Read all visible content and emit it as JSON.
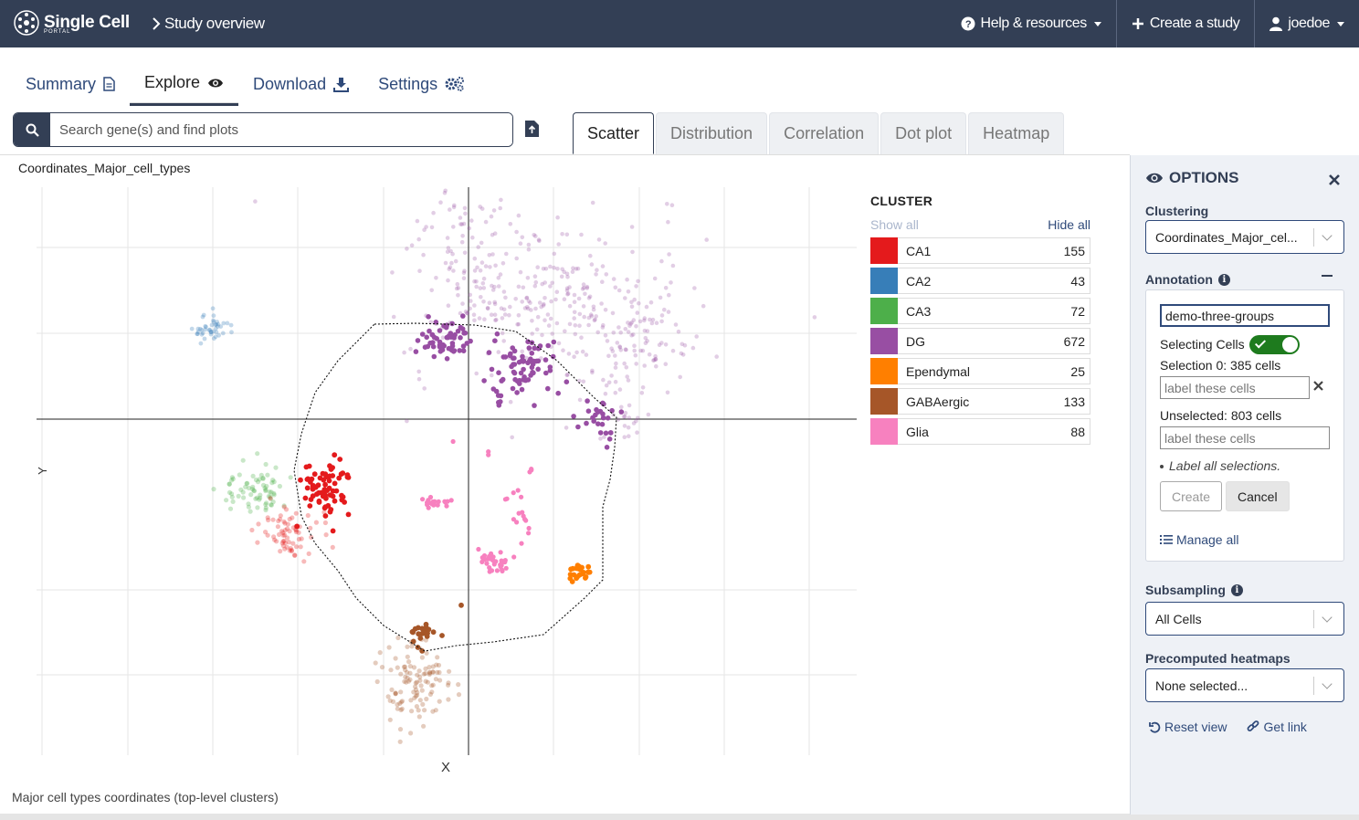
{
  "header": {
    "brand": "Single Cell",
    "brand_sub": "PORTAL",
    "study_link": "Study overview",
    "help": "Help & resources",
    "create": "Create a study",
    "user": "joedoe"
  },
  "tabs": [
    {
      "label": "Summary",
      "icon": "document-icon"
    },
    {
      "label": "Explore",
      "icon": "eye-icon"
    },
    {
      "label": "Download",
      "icon": "download-icon"
    },
    {
      "label": "Settings",
      "icon": "gears-icon"
    }
  ],
  "search": {
    "placeholder": "Search gene(s) and find plots"
  },
  "plot_tabs": [
    "Scatter",
    "Distribution",
    "Correlation",
    "Dot plot",
    "Heatmap"
  ],
  "plot": {
    "title": "Coordinates_Major_cell_types",
    "xlabel": "X",
    "ylabel": "Y",
    "caption": "Major cell types coordinates (top-level clusters)"
  },
  "legend": {
    "title": "CLUSTER",
    "show_all": "Show all",
    "hide_all": "Hide all",
    "items": [
      {
        "label": "CA1",
        "count": "155",
        "color": "#e41a1c"
      },
      {
        "label": "CA2",
        "count": "43",
        "color": "#377eb8"
      },
      {
        "label": "CA3",
        "count": "72",
        "color": "#4daf4a"
      },
      {
        "label": "DG",
        "count": "672",
        "color": "#984ea3"
      },
      {
        "label": "Ependymal",
        "count": "25",
        "color": "#ff7f00"
      },
      {
        "label": "GABAergic",
        "count": "133",
        "color": "#a65628"
      },
      {
        "label": "Glia",
        "count": "88",
        "color": "#f781bf"
      }
    ]
  },
  "chart_data": {
    "type": "scatter",
    "title": "Coordinates_Major_cell_types",
    "xlabel": "X",
    "ylabel": "Y",
    "grid": true,
    "legend_position": "right",
    "series": [
      {
        "name": "CA1",
        "n": 155,
        "color": "#e41a1c"
      },
      {
        "name": "CA2",
        "n": 43,
        "color": "#377eb8"
      },
      {
        "name": "CA3",
        "n": 72,
        "color": "#4daf4a"
      },
      {
        "name": "DG",
        "n": 672,
        "color": "#984ea3"
      },
      {
        "name": "Ependymal",
        "n": 25,
        "color": "#ff7f00"
      },
      {
        "name": "GABAergic",
        "n": 133,
        "color": "#a65628"
      },
      {
        "name": "Glia",
        "n": 88,
        "color": "#f781bf"
      }
    ]
  },
  "options": {
    "title": "OPTIONS",
    "clustering_label": "Clustering",
    "clustering_value": "Coordinates_Major_cel...",
    "annotation_label": "Annotation",
    "annotation_name": "demo-three-groups",
    "selecting_cells": "Selecting Cells",
    "selection0": "Selection 0: 385 cells",
    "label_placeholder": "label these cells",
    "unselected": "Unselected: 803 cells",
    "note": "Label all selections.",
    "create": "Create",
    "cancel": "Cancel",
    "manage_all": "Manage all",
    "subsampling_label": "Subsampling",
    "subsampling_value": "All Cells",
    "heatmaps_label": "Precomputed heatmaps",
    "heatmaps_value": "None selected...",
    "reset_view": "Reset view",
    "get_link": "Get link"
  }
}
